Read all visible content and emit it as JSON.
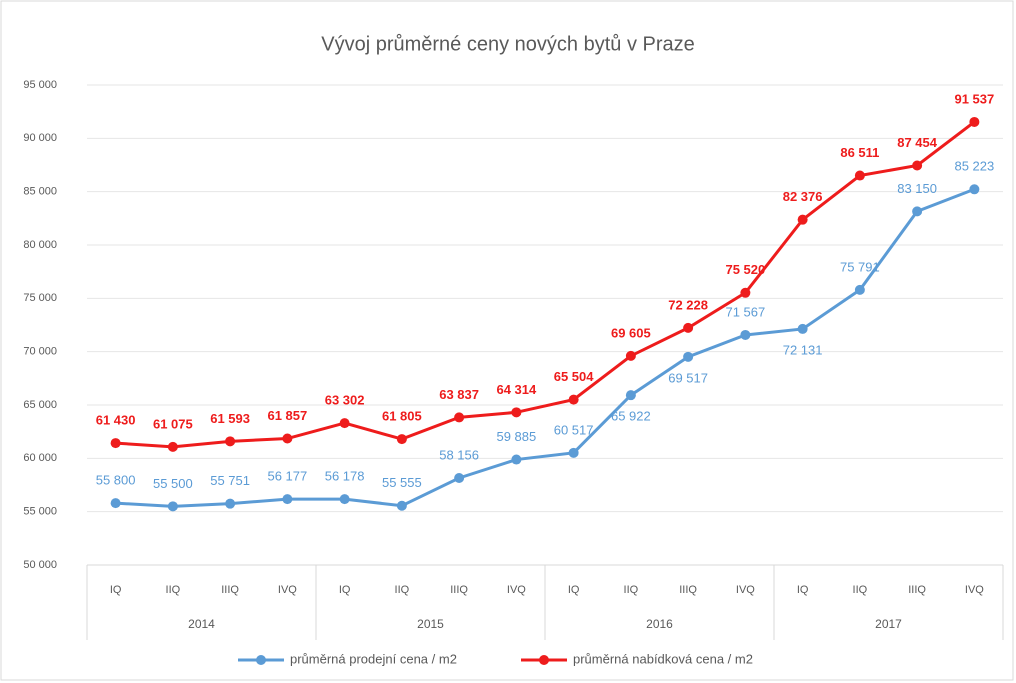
{
  "chart_data": {
    "type": "line",
    "title": "Vývoj průměrné ceny nových bytů v Praze",
    "categories": [
      "IQ",
      "IIQ",
      "IIIQ",
      "IVQ",
      "IQ",
      "IIQ",
      "IIIQ",
      "IVQ",
      "IQ",
      "IIQ",
      "IIIQ",
      "IVQ",
      "IQ",
      "IIQ",
      "IIIQ",
      "IVQ"
    ],
    "category_groups": [
      "2014",
      "2015",
      "2016",
      "2017"
    ],
    "series": [
      {
        "name": "průměrná prodejní cena / m2",
        "color": "#5b9bd5",
        "values": [
          55800,
          55500,
          55751,
          56177,
          56178,
          55555,
          58156,
          59885,
          60517,
          65922,
          69517,
          71567,
          72131,
          75791,
          83150,
          85223
        ],
        "value_labels": [
          "55 800",
          "55 500",
          "55 751",
          "56 177",
          "56 178",
          "55 555",
          "58 156",
          "59 885",
          "60 517",
          "65 922",
          "69 517",
          "71 567",
          "72 131",
          "75 791",
          "83 150",
          "85 223"
        ]
      },
      {
        "name": "průměrná nabídková cena / m2",
        "color": "#ee1c1c",
        "values": [
          61430,
          61075,
          61593,
          61857,
          63302,
          61805,
          63837,
          64314,
          65504,
          69605,
          72228,
          75520,
          82376,
          86511,
          87454,
          91537
        ],
        "value_labels": [
          "61 430",
          "61 075",
          "61 593",
          "61 857",
          "63 302",
          "61 805",
          "63 837",
          "64 314",
          "65 504",
          "69 605",
          "72 228",
          "75 520",
          "82 376",
          "86 511",
          "87 454",
          "91 537"
        ]
      }
    ],
    "ylim": [
      50000,
      95000
    ],
    "yticks": [
      {
        "value": 50000,
        "label": "50 000"
      },
      {
        "value": 55000,
        "label": "55 000"
      },
      {
        "value": 60000,
        "label": "60 000"
      },
      {
        "value": 65000,
        "label": "65 000"
      },
      {
        "value": 70000,
        "label": "70 000"
      },
      {
        "value": 75000,
        "label": "75 000"
      },
      {
        "value": 80000,
        "label": "80 000"
      },
      {
        "value": 85000,
        "label": "85 000"
      },
      {
        "value": 90000,
        "label": "90 000"
      },
      {
        "value": 95000,
        "label": "95 000"
      }
    ],
    "grid": true,
    "legend": "bottom"
  }
}
